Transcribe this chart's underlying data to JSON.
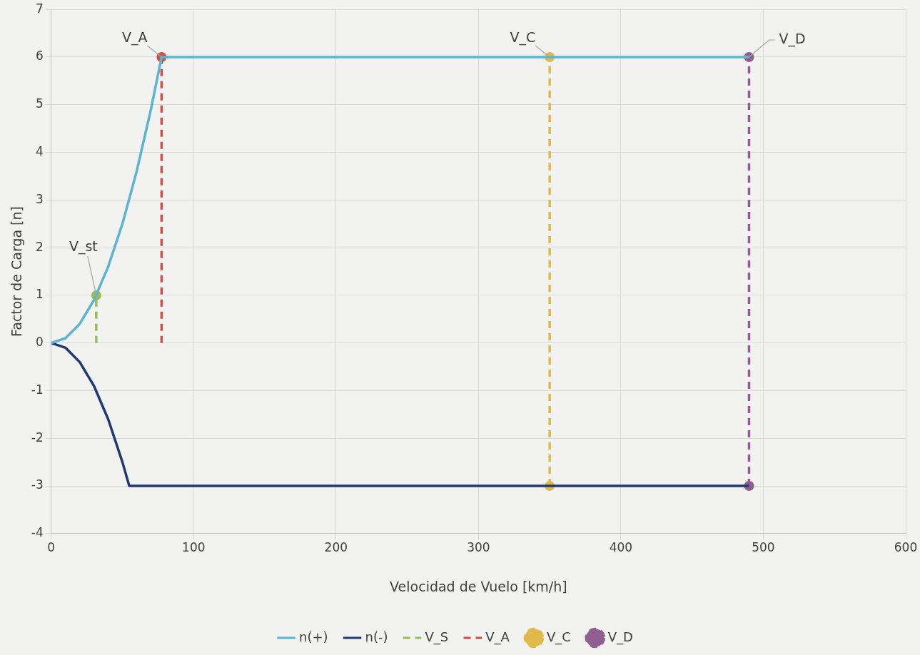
{
  "chart_data": {
    "type": "line",
    "xlabel": "Velocidad de Vuelo [km/h]",
    "ylabel": "Factor de Carga [n]",
    "xlim": [
      0,
      600
    ],
    "xticks": [
      0,
      100,
      200,
      300,
      400,
      500,
      600
    ],
    "ylim": [
      -4,
      7
    ],
    "yticks": [
      -4,
      -3,
      -2,
      -1,
      0,
      1,
      2,
      3,
      4,
      5,
      6,
      7
    ],
    "grid": true,
    "legend": "bottom",
    "line_style": "solid",
    "series": [
      {
        "name": "n(+)",
        "color": "#5bb5cf",
        "marker": "none",
        "x": [
          0,
          10,
          20,
          30,
          40,
          50,
          60,
          70,
          77.5,
          490
        ],
        "values": [
          0,
          0.1,
          0.4,
          0.9,
          1.6,
          2.5,
          3.6,
          4.9,
          6,
          6
        ]
      },
      {
        "name": "n(-)",
        "color": "#1f3a6e",
        "marker": "none",
        "x": [
          0,
          10,
          20,
          30,
          40,
          50,
          54.8,
          490
        ],
        "values": [
          0,
          -0.1,
          -0.4,
          -0.9,
          -1.6,
          -2.5,
          -3,
          -3
        ]
      },
      {
        "name": "V_S",
        "color": "#9bbb59",
        "marker": "none",
        "line_style": "dashed",
        "x": [
          31.6,
          31.6
        ],
        "values": [
          0,
          1
        ]
      },
      {
        "name": "V_A",
        "color": "#c9504d",
        "marker": "none",
        "line_style": "dashed",
        "x": [
          77.5,
          77.5
        ],
        "values": [
          0,
          6
        ]
      },
      {
        "name": "V_C",
        "color": "#dfb94a",
        "marker": "circle",
        "line_style": "dashed",
        "x": [
          350,
          350
        ],
        "values": [
          -3,
          6
        ]
      },
      {
        "name": "V_D",
        "color": "#915f8f",
        "marker": "circle",
        "line_style": "dashed",
        "x": [
          490,
          490
        ],
        "values": [
          -3,
          6
        ]
      },
      {
        "type": "scatter",
        "color": "#9bbb59",
        "marker": "circle",
        "x": [
          31.6
        ],
        "values": [
          1
        ]
      },
      {
        "type": "scatter",
        "color": "#c9504d",
        "marker": "circle",
        "x": [
          77.5
        ],
        "values": [
          6
        ]
      }
    ],
    "annotations": [
      {
        "text": "V_st",
        "x": 31.6,
        "y": 1
      },
      {
        "text": "V_A",
        "x": 77.5,
        "y": 6
      },
      {
        "text": "V_C",
        "x": 350,
        "y": 6
      },
      {
        "text": "V_D",
        "x": 490,
        "y": 6
      }
    ]
  }
}
